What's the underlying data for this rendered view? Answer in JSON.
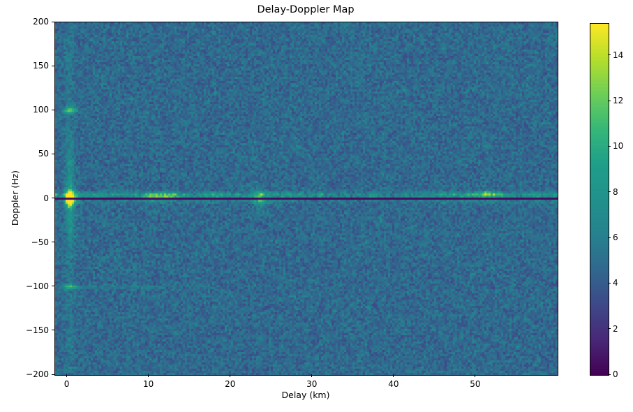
{
  "figure": {
    "background": "#ffffff"
  },
  "chart_data": {
    "type": "heatmap",
    "title": "Delay-Doppler Map",
    "xlabel": "Delay (km)",
    "ylabel": "Doppler (Hz)",
    "xlim": [
      -1.5,
      60
    ],
    "ylim": [
      -200,
      200
    ],
    "xtick_values": [
      0,
      10,
      20,
      30,
      40,
      50
    ],
    "xtick_labels": [
      "0",
      "10",
      "20",
      "30",
      "40",
      "50"
    ],
    "ytick_values": [
      200,
      150,
      100,
      50,
      0,
      -50,
      -100,
      -150,
      -200
    ],
    "ytick_labels": [
      "200",
      "150",
      "100",
      "50",
      "0",
      "−50",
      "−100",
      "−150",
      "−200"
    ],
    "grid": false,
    "colormap": "viridis",
    "colormap_stops": [
      "#440154",
      "#482878",
      "#3e4989",
      "#31688e",
      "#26828e",
      "#21918c",
      "#1f9e89",
      "#35b779",
      "#6ece58",
      "#b5de2b",
      "#fde725"
    ],
    "colorbar": {
      "vmin": 0,
      "vmax": 15.4,
      "tick_values": [
        0,
        2,
        4,
        6,
        8,
        10,
        12,
        14
      ],
      "tick_labels": [
        "0",
        "2",
        "4",
        "6",
        "8",
        "10",
        "12",
        "14"
      ],
      "position": "right"
    },
    "noise_floor": {
      "mean": 4.7,
      "spread": 1.2
    },
    "features": [
      {
        "name": "zero-doppler-clutter-ridge",
        "type": "band",
        "doppler_hz": 4,
        "sigma_doppler_hz": 2.4,
        "amp": 3.0,
        "amp_jitter": 1.6
      },
      {
        "name": "below-notch-ridge",
        "type": "band",
        "doppler_hz": -3,
        "sigma_doppler_hz": 1.6,
        "amp": 1.1,
        "amp_jitter": 0.7
      },
      {
        "name": "main-target",
        "type": "blob",
        "delay_km": 0.3,
        "doppler_hz": 0,
        "amp": 14.0,
        "sigma_delay_km": 0.4,
        "sigma_doppler_hz": 5.5
      },
      {
        "name": "main-target-doppler-streak",
        "type": "blob",
        "delay_km": 0.3,
        "doppler_hz": 2,
        "amp": 3.2,
        "sigma_delay_km": 0.35,
        "sigma_doppler_hz": 32
      },
      {
        "name": "main-target-full-column",
        "type": "blob",
        "delay_km": 0.3,
        "doppler_hz": 0,
        "amp": 0.8,
        "sigma_delay_km": 0.45,
        "sigma_doppler_hz": 300
      },
      {
        "name": "doppler-ambiguity-plus100",
        "type": "blob",
        "delay_km": 0.3,
        "doppler_hz": 100,
        "amp": 8.0,
        "sigma_delay_km": 0.55,
        "sigma_doppler_hz": 2.4
      },
      {
        "name": "doppler-ambiguity-minus100",
        "type": "blob",
        "delay_km": 0.3,
        "doppler_hz": -100,
        "amp": 6.0,
        "sigma_delay_km": 0.55,
        "sigma_doppler_hz": 2.2
      },
      {
        "name": "minus100-clutter-streak",
        "type": "blob",
        "delay_km": 6.5,
        "doppler_hz": -100,
        "amp": 1.6,
        "sigma_delay_km": 5.0,
        "sigma_doppler_hz": 1.4
      },
      {
        "name": "clutter-patch-11km",
        "type": "blob",
        "delay_km": 11.5,
        "doppler_hz": 2,
        "amp": 4.6,
        "sigma_delay_km": 1.6,
        "sigma_doppler_hz": 2.8
      },
      {
        "name": "target-23km",
        "type": "blob",
        "delay_km": 23.6,
        "doppler_hz": 0,
        "amp": 5.2,
        "sigma_delay_km": 0.5,
        "sigma_doppler_hz": 6.5
      },
      {
        "name": "target-51km",
        "type": "blob",
        "delay_km": 51.2,
        "doppler_hz": 5,
        "amp": 5.0,
        "sigma_delay_km": 0.8,
        "sigma_doppler_hz": 2.2
      },
      {
        "name": "zero-doppler-notch",
        "type": "notch",
        "doppler_hz": 0,
        "halfwidth_hz": 1.3,
        "value": 0.4
      }
    ]
  }
}
